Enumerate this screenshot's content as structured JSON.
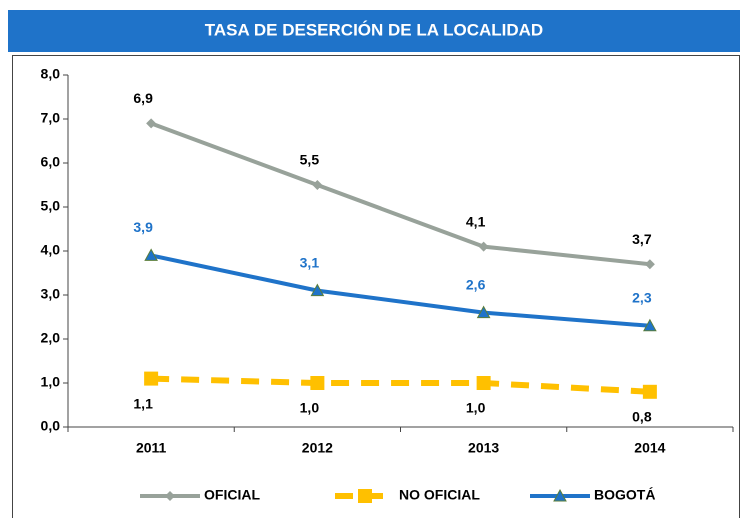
{
  "chart_data": {
    "type": "line",
    "title": "TASA DE DESERCIÓN DE LA LOCALIDAD",
    "categories": [
      "2011",
      "2012",
      "2013",
      "2014"
    ],
    "series": [
      {
        "name": "OFICIAL",
        "color": "#98a29a",
        "marker": "diamond",
        "dashed": false,
        "label_color": "#000000",
        "values": [
          6.9,
          5.5,
          4.1,
          3.7
        ],
        "value_labels": [
          "6,9",
          "5,5",
          "4,1",
          "3,7"
        ]
      },
      {
        "name": "NO OFICIAL",
        "color": "#ffc000",
        "marker": "square",
        "dashed": true,
        "label_color": "#000000",
        "values": [
          1.1,
          1.0,
          1.0,
          0.8
        ],
        "value_labels": [
          "1,1",
          "1,0",
          "1,0",
          "0,8"
        ]
      },
      {
        "name": "BOGOTÁ",
        "color": "#1f73c9",
        "marker": "triangle",
        "dashed": false,
        "label_color": "#1f73c9",
        "values": [
          3.9,
          3.1,
          2.6,
          2.3
        ],
        "value_labels": [
          "3,9",
          "3,1",
          "2,6",
          "2,3"
        ]
      }
    ],
    "ylim": [
      0,
      8
    ],
    "yticks": [
      {
        "value": 0,
        "label": "0,0"
      },
      {
        "value": 1,
        "label": "1,0"
      },
      {
        "value": 2,
        "label": "2,0"
      },
      {
        "value": 3,
        "label": "3,0"
      },
      {
        "value": 4,
        "label": "4,0"
      },
      {
        "value": 5,
        "label": "5,0"
      },
      {
        "value": 6,
        "label": "6,0"
      },
      {
        "value": 7,
        "label": "7,0"
      },
      {
        "value": 8,
        "label": "8,0"
      }
    ],
    "legend": "bottom"
  }
}
